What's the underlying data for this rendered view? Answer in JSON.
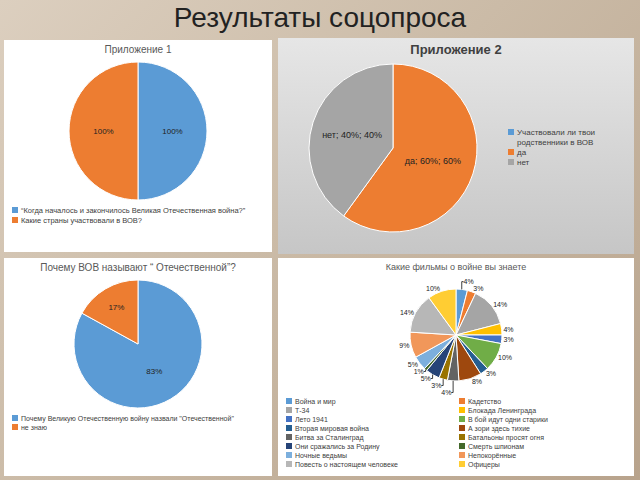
{
  "title": "Результаты соцопроса",
  "chart_data": [
    {
      "type": "pie",
      "title": "Приложение 1",
      "categories": [
        "“Когда началось и закончилось Великая Отечественная война?”",
        "Какие страны участвовали в ВОВ?"
      ],
      "values": [
        100,
        100
      ],
      "value_labels": [
        "100%",
        "100%"
      ],
      "colors": [
        "#5B9BD5",
        "#ED7D31"
      ],
      "data_labels": true,
      "legend": "bottom"
    },
    {
      "type": "pie",
      "title": "Приложение 2",
      "categories": [
        "Участвовали ли твои родственники в ВОВ",
        "да",
        "нет"
      ],
      "values": [
        0,
        60,
        40
      ],
      "value_labels": [
        null,
        "да; 60%; 60%",
        "нет; 40%; 40%"
      ],
      "colors": [
        "#5B9BD5",
        "#ED7D31",
        "#A5A5A5"
      ],
      "data_labels": true,
      "legend": "right"
    },
    {
      "type": "pie",
      "title": "Почему ВОВ называют “ Отечественной”?",
      "categories": [
        "Почему Великую Отечественную войну назвали \"Отечественной\"",
        "не знаю"
      ],
      "values": [
        83,
        17
      ],
      "value_labels": [
        "83%",
        "17%"
      ],
      "colors": [
        "#5B9BD5",
        "#ED7D31"
      ],
      "data_labels": true,
      "legend": "bottom"
    },
    {
      "type": "pie",
      "title": "Какие фильмы о войне вы знаете",
      "categories": [
        "Война и мир",
        "Кадетство",
        "Т-34",
        "Блокада Ленинграда",
        "Лето 1941",
        "В бой идут одни старики",
        "Вторая мировая война",
        "А зори здесь тихие",
        "Битва за Сталинград",
        "Батальоны просят огня",
        "Они сражались за Родину",
        "Смерть шпионам",
        "Ночные ведьмы",
        "Непокорённые",
        "Повесть о настоящем человеке",
        "Офицеры"
      ],
      "values": [
        4,
        3,
        14,
        4,
        3,
        10,
        3,
        8,
        4,
        3,
        5,
        1,
        5,
        9,
        14,
        10
      ],
      "value_labels": [
        "4%",
        "3%",
        "14%",
        "4%",
        "3%",
        "10%",
        "3%",
        "8%",
        "4%",
        "3%",
        "5%",
        "1%",
        "5%",
        "9%",
        "14%",
        "10%"
      ],
      "colors": [
        "#5B9BD5",
        "#ED7D31",
        "#A5A5A5",
        "#FFC000",
        "#4472C4",
        "#70AD47",
        "#255E91",
        "#9E480E",
        "#636363",
        "#997300",
        "#264478",
        "#43682B",
        "#7CAFDD",
        "#F1975A",
        "#B7B7B7",
        "#FFCD33"
      ],
      "data_labels": true,
      "legend": "bottom"
    }
  ]
}
